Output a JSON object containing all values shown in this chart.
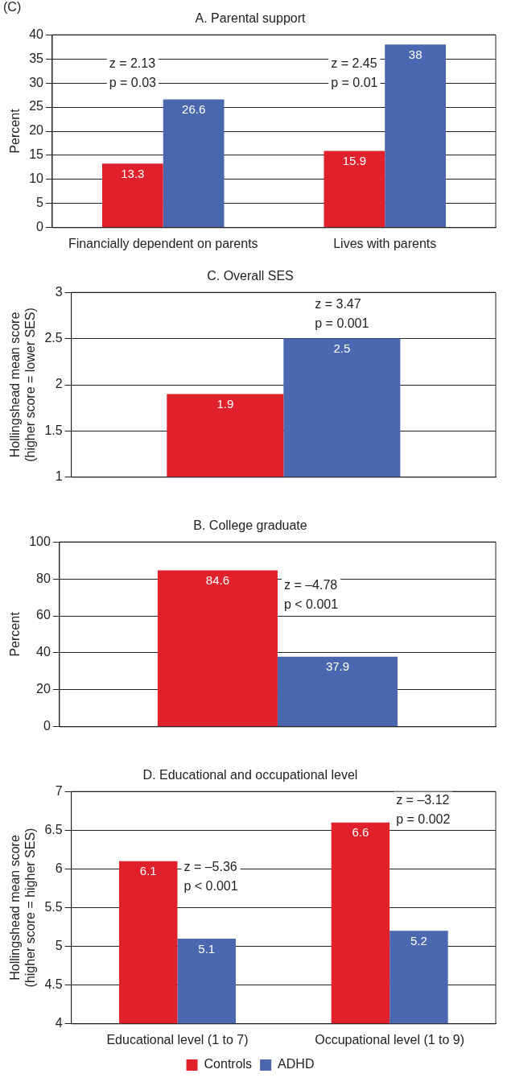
{
  "chart_data": [
    {
      "type": "bar",
      "title": "A. Parental support",
      "ylabel": "Percent",
      "categories": [
        "Financially dependent on parents",
        "Lives with parents"
      ],
      "series": [
        {
          "color": "#e0202a",
          "values": [
            13.3,
            15.9
          ]
        },
        {
          "color": "#4a67b0",
          "values": [
            26.6,
            38
          ]
        }
      ],
      "ylim": [
        0,
        40
      ],
      "yticks": [
        0,
        5,
        10,
        15,
        20,
        25,
        30,
        35,
        40
      ],
      "grid": "y",
      "legend": false,
      "data_labels": true,
      "annotations": [
        "(C)",
        "z = 2.13\np = 0.03",
        "z = 2.45\np = 0.01"
      ]
    },
    {
      "type": "bar",
      "title": "C. Overall SES",
      "ylabel": "Hollingshead mean score\n(higher score = lower SES)",
      "categories": [
        null
      ],
      "series": [
        {
          "color": "#e0202a",
          "values": [
            1.9
          ]
        },
        {
          "color": "#4a67b0",
          "values": [
            2.5
          ]
        }
      ],
      "ylim": [
        1,
        3
      ],
      "yticks": [
        1,
        1.5,
        2,
        2.5,
        3
      ],
      "grid": "y",
      "legend": false,
      "data_labels": true,
      "annotations": [
        "z = 3.47\np = 0.001"
      ]
    },
    {
      "type": "bar",
      "title": "B. College graduate",
      "ylabel": "Percent",
      "categories": [
        null
      ],
      "series": [
        {
          "color": "#e0202a",
          "values": [
            84.6
          ]
        },
        {
          "color": "#4a67b0",
          "values": [
            37.9
          ]
        }
      ],
      "ylim": [
        0,
        100
      ],
      "yticks": [
        0,
        20,
        40,
        60,
        80,
        100
      ],
      "grid": "y",
      "legend": false,
      "data_labels": true,
      "annotations": [
        "z = –4.78\np < 0.001"
      ]
    },
    {
      "type": "bar",
      "title": "D. Educational and occupational level",
      "ylabel": "Hollingshead mean score\n(higher score = higher SES)",
      "categories": [
        "Educational level (1 to 7)",
        "Occupational level (1 to 9)"
      ],
      "series": [
        {
          "name": "Controls",
          "color": "#e0202a",
          "values": [
            6.1,
            6.6
          ]
        },
        {
          "name": "ADHD",
          "color": "#4a67b0",
          "values": [
            5.1,
            5.2
          ]
        }
      ],
      "ylim": [
        4,
        7
      ],
      "yticks": [
        4,
        4.5,
        5,
        5.5,
        6,
        6.5,
        7
      ],
      "grid": "y",
      "legend": "bottom",
      "data_labels": true,
      "annotations": [
        "z = –5.36\np < 0.001",
        "z = –3.12\np = 0.002"
      ]
    }
  ]
}
